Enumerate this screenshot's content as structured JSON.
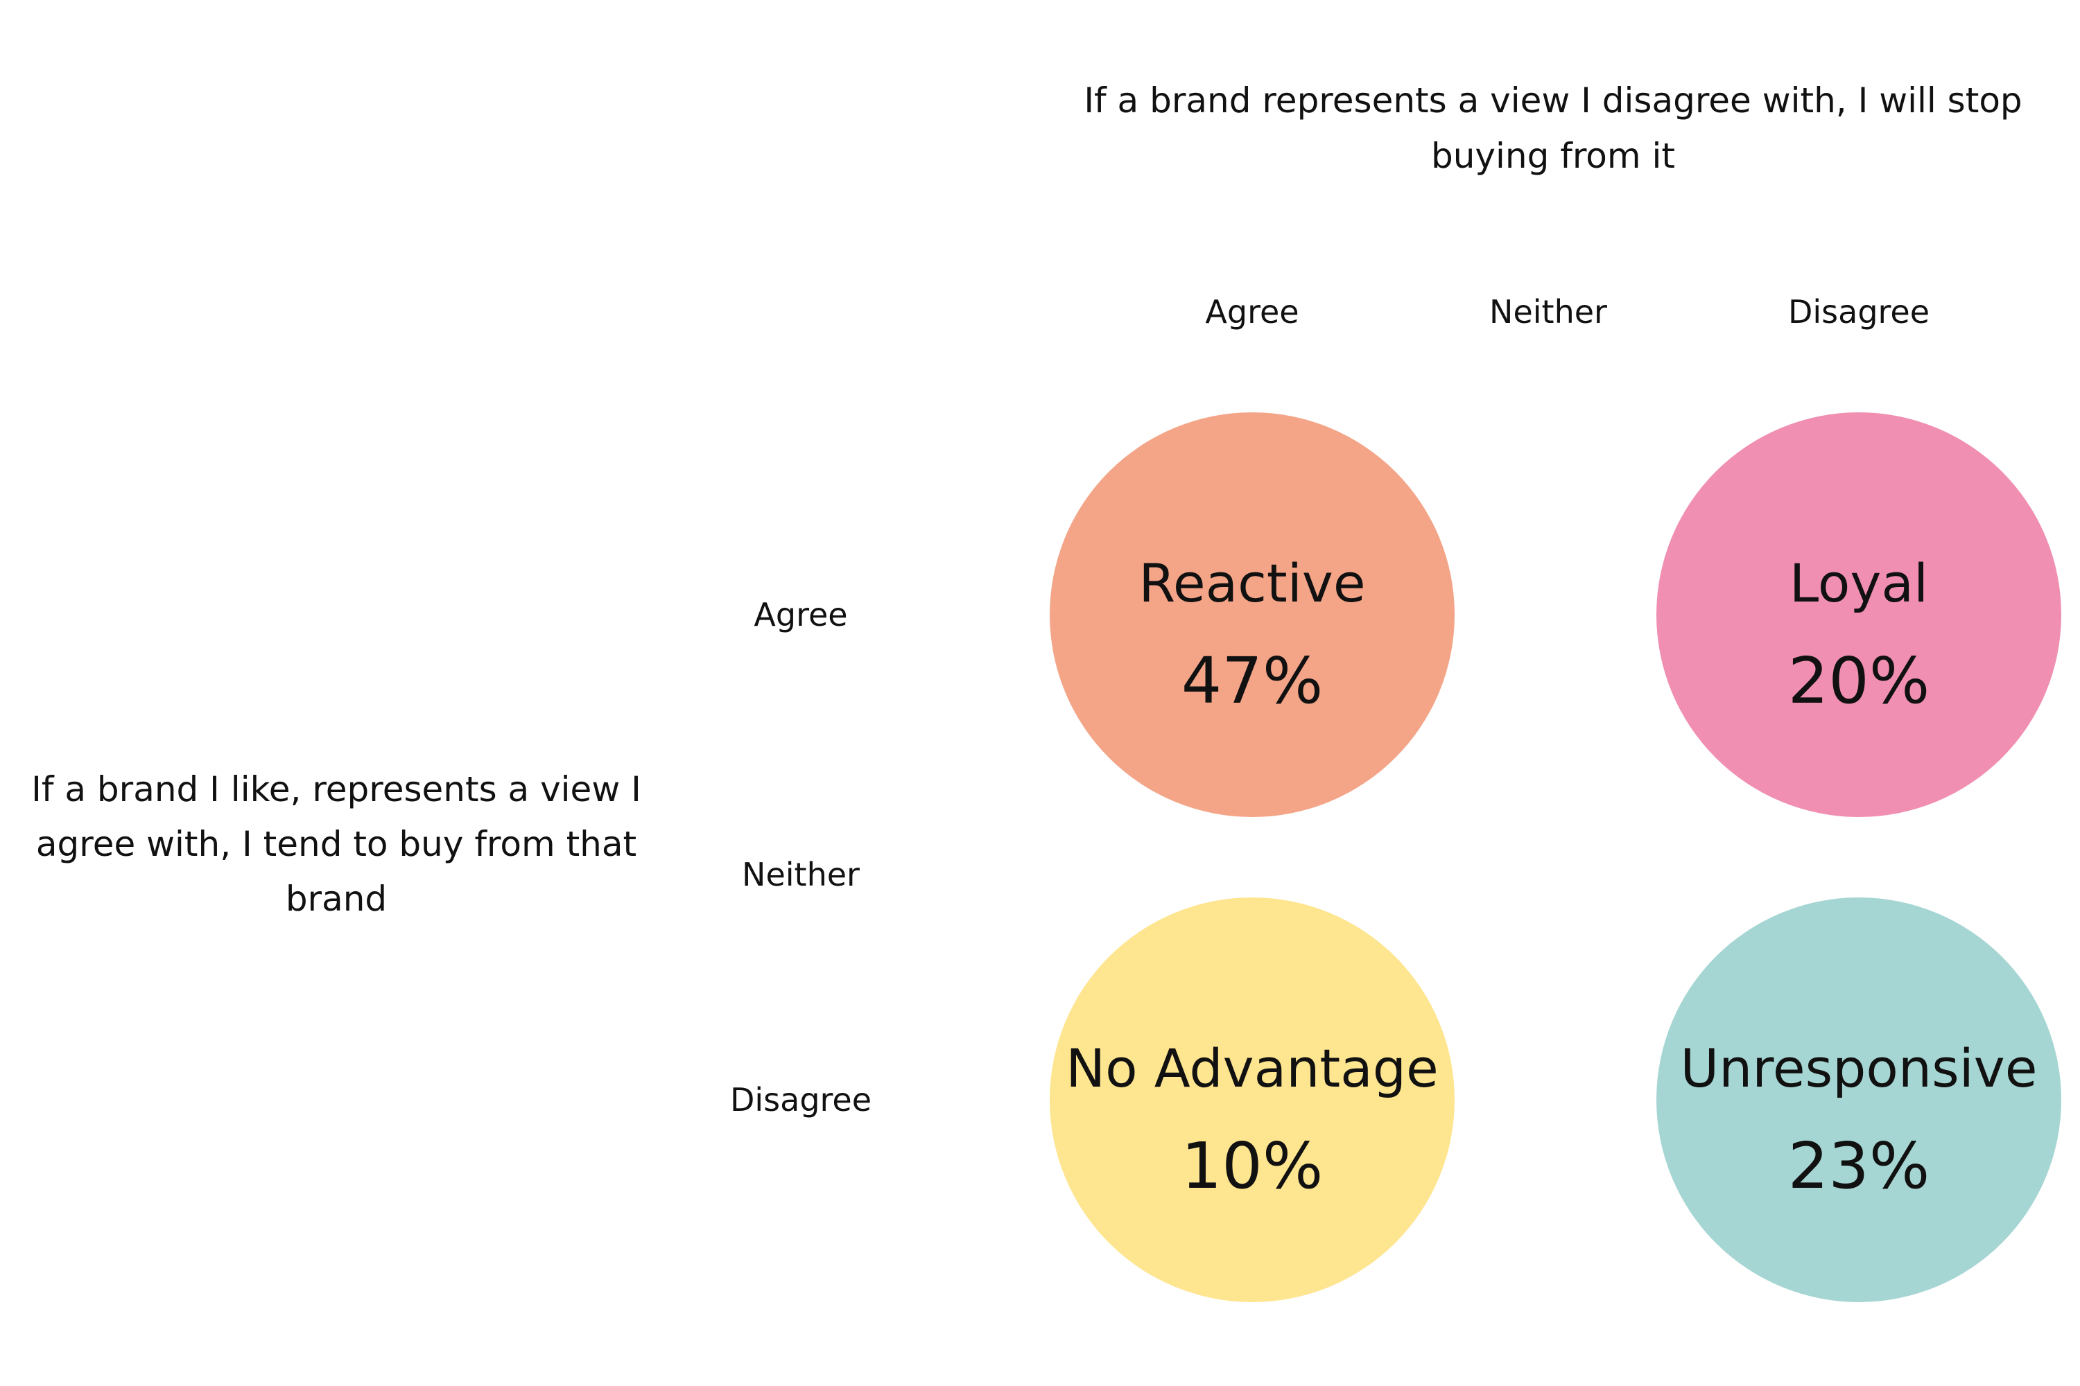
{
  "column_question": "If a brand represents a view I disagree with, I will stop buying from it",
  "row_question": "If a brand I like, represents a view I agree with, I tend to buy from that brand",
  "columns": [
    "Agree",
    "Neither",
    "Disagree"
  ],
  "rows": [
    "Agree",
    "Neither",
    "Disagree"
  ],
  "segments": [
    {
      "name": "Reactive",
      "percent": "47%",
      "row": "Agree",
      "column": "Agree",
      "color": "#F4A588"
    },
    {
      "name": "Loyal",
      "percent": "20%",
      "row": "Agree",
      "column": "Disagree",
      "color": "#F08FB2"
    },
    {
      "name": "No Advantage",
      "percent": "10%",
      "row": "Disagree",
      "column": "Agree",
      "color": "#FEE58F"
    },
    {
      "name": "Unresponsive",
      "percent": "23%",
      "row": "Disagree",
      "column": "Disagree",
      "color": "#A6D6D3"
    }
  ]
}
